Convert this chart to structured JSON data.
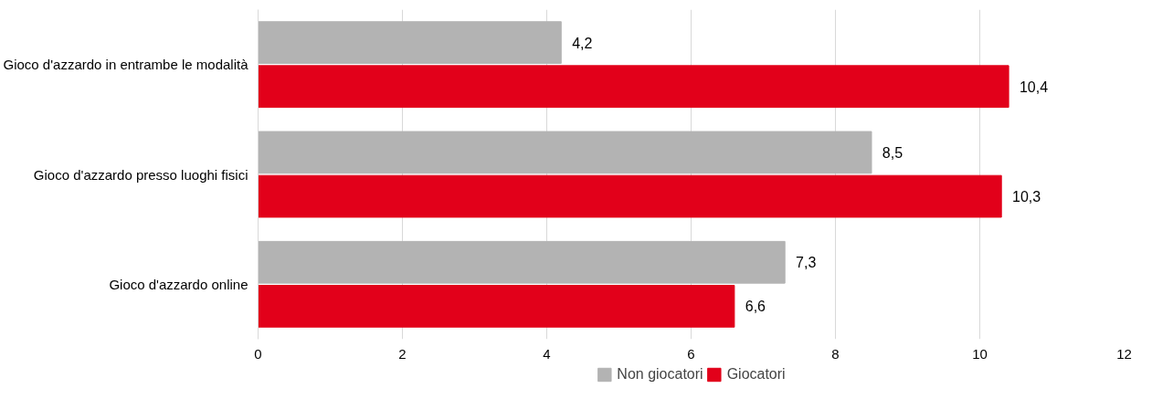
{
  "chart_data": {
    "type": "bar",
    "orientation": "horizontal",
    "categories": [
      "Gioco d'azzardo in entrambe le modalità",
      "Gioco d'azzardo presso luoghi fisici",
      "Gioco d'azzardo online"
    ],
    "series": [
      {
        "name": "Non giocatori",
        "color": "#b3b3b3",
        "values": [
          4.2,
          8.5,
          7.3
        ],
        "value_labels": [
          "4,2",
          "8,5",
          "7,3"
        ]
      },
      {
        "name": "Giocatori",
        "color": "#e2001a",
        "values": [
          10.4,
          10.3,
          6.6
        ],
        "value_labels": [
          "10,4",
          "10,3",
          "6,6"
        ]
      }
    ],
    "xlim": [
      0,
      12
    ],
    "xticks": [
      0,
      2,
      4,
      6,
      8,
      10,
      12
    ],
    "grid": "x",
    "legend": "bottom"
  }
}
